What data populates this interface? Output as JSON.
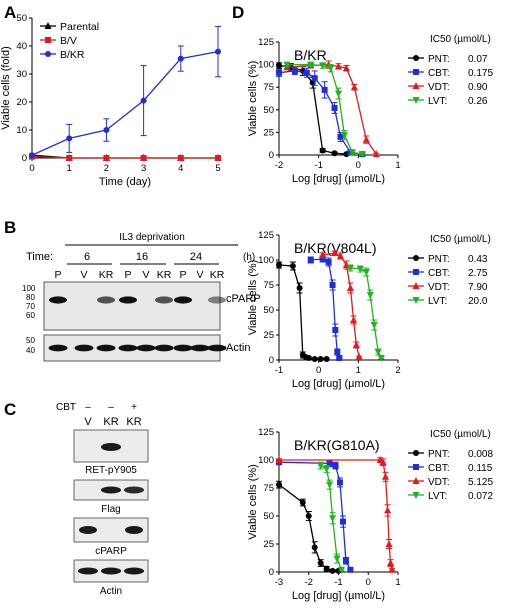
{
  "panels": {
    "A": {
      "letter": "A"
    },
    "B": {
      "letter": "B",
      "header": "IL3 deprivation",
      "time_label": "Time:",
      "times": [
        "6",
        "16",
        "24"
      ],
      "unit": "(h)",
      "lanes": [
        "P",
        "V",
        "KR",
        "P",
        "V",
        "KR",
        "P",
        "V",
        "KR"
      ],
      "mw_cparp": [
        "100",
        "80",
        "70",
        "60"
      ],
      "mw_actin": [
        "50",
        "40"
      ],
      "blot_labels": [
        "cPARP",
        "Actin"
      ]
    },
    "C": {
      "letter": "C",
      "cbt_label": "CBT",
      "cbt_marks": [
        "–",
        "–",
        "+"
      ],
      "lanes": [
        "V",
        "KR",
        "KR"
      ],
      "blot_labels": [
        "RET-pY905",
        "Flag",
        "cPARP",
        "Actin"
      ]
    },
    "D": {
      "letter": "D"
    }
  },
  "chart_data": [
    {
      "id": "A",
      "type": "line",
      "title": "",
      "xlabel": "Time (day)",
      "ylabel": "Viable cells (fold)",
      "xlim": [
        0,
        5
      ],
      "ylim": [
        0,
        50
      ],
      "xticks": [
        0,
        1,
        2,
        3,
        4,
        5
      ],
      "yticks": [
        0,
        10,
        20,
        30,
        40,
        50
      ],
      "legend_position": "top-left",
      "x": [
        0,
        1,
        2,
        3,
        4,
        5
      ],
      "series": [
        {
          "name": "Parental",
          "color": "#000000",
          "marker": "triangle",
          "values": [
            1,
            0,
            0,
            0,
            0,
            0
          ],
          "err": [
            0,
            0,
            0,
            0,
            0,
            0
          ]
        },
        {
          "name": "B/V",
          "color": "#e41a1c",
          "marker": "square",
          "values": [
            0.5,
            0,
            0,
            0,
            0,
            0
          ],
          "err": [
            0,
            0,
            0,
            0,
            0,
            0
          ]
        },
        {
          "name": "B/KR",
          "color": "#1f2fd6",
          "marker": "circle",
          "values": [
            1,
            7,
            10,
            20.5,
            35.5,
            38
          ],
          "err": [
            0,
            5,
            4,
            12.5,
            4.5,
            9
          ]
        }
      ]
    },
    {
      "id": "D1",
      "type": "line",
      "title": "B/KR",
      "xlabel": "Log [drug] (µmol/L)",
      "ylabel": "Viable cells (%)",
      "xlim": [
        -2,
        1
      ],
      "ylim": [
        0,
        125
      ],
      "xticks": [
        -2,
        -1,
        0,
        1
      ],
      "yticks": [
        0,
        25,
        50,
        75,
        100,
        125
      ],
      "legend_title": "IC50 (µmol/L)",
      "series": [
        {
          "name": "PNT:",
          "ic50": "0.07",
          "color": "#000000",
          "marker": "circle",
          "x": [
            -2,
            -1.7,
            -1.4,
            -1.15,
            -0.9,
            -0.6,
            -0.3
          ],
          "values": [
            99,
            97,
            93,
            80,
            5,
            2,
            1
          ],
          "err": [
            3,
            4,
            5,
            6,
            2,
            1,
            1
          ]
        },
        {
          "name": "CBT:",
          "ic50": "0.175",
          "color": "#1f2fd6",
          "marker": "square",
          "x": [
            -2,
            -1.6,
            -1.3,
            -1.1,
            -0.85,
            -0.6,
            -0.45,
            -0.2,
            0.1
          ],
          "values": [
            91,
            93,
            91,
            85,
            72,
            52,
            20,
            3,
            1
          ],
          "err": [
            4,
            4,
            5,
            8,
            9,
            6,
            5,
            2,
            1
          ]
        },
        {
          "name": "VDT:",
          "ic50": "0.90",
          "color": "#e41a1c",
          "marker": "triangle",
          "x": [
            -1.8,
            -1.2,
            -0.75,
            -0.5,
            -0.3,
            -0.1,
            0.2,
            0.45
          ],
          "values": [
            97,
            99,
            100,
            98,
            96,
            75,
            17,
            1
          ],
          "err": [
            2,
            2,
            4,
            3,
            3,
            3,
            4,
            1
          ]
        },
        {
          "name": "LVT:",
          "ic50": "0.26",
          "color": "#22b322",
          "marker": "tridown",
          "x": [
            -1.8,
            -1.2,
            -0.9,
            -0.7,
            -0.5,
            -0.35,
            -0.15,
            0.1
          ],
          "values": [
            100,
            100,
            99,
            96,
            68,
            22,
            3,
            1
          ],
          "err": [
            2,
            2,
            3,
            4,
            6,
            5,
            2,
            1
          ]
        }
      ]
    },
    {
      "id": "D2",
      "type": "line",
      "title": "B/KR(V804L)",
      "xlabel": "Log [drug] (µmol/L)",
      "ylabel": "Viable cells (%)",
      "xlim": [
        -1,
        2
      ],
      "ylim": [
        0,
        125
      ],
      "xticks": [
        -1,
        0,
        1,
        2
      ],
      "yticks": [
        0,
        25,
        50,
        75,
        100,
        125
      ],
      "legend_title": "IC50 (µmol/L)",
      "series": [
        {
          "name": "PNT:",
          "ic50": "0.43",
          "color": "#000000",
          "marker": "circle",
          "x": [
            -1,
            -0.65,
            -0.48,
            -0.4,
            -0.33,
            -0.25,
            -0.1,
            0.05,
            0.2
          ],
          "values": [
            95,
            94,
            72,
            5,
            3,
            2,
            1,
            1,
            1
          ],
          "err": [
            3,
            4,
            5,
            3,
            1,
            1,
            1,
            1,
            1
          ]
        },
        {
          "name": "CBT:",
          "ic50": "2.75",
          "color": "#1f2fd6",
          "marker": "square",
          "x": [
            -0.2,
            0.1,
            0.25,
            0.35,
            0.42,
            0.47,
            0.52
          ],
          "values": [
            100,
            101,
            98,
            75,
            30,
            8,
            2
          ],
          "err": [
            3,
            3,
            4,
            5,
            6,
            3,
            1
          ]
        },
        {
          "name": "VDT:",
          "ic50": "7.90",
          "color": "#e41a1c",
          "marker": "triangle",
          "x": [
            0.1,
            0.4,
            0.55,
            0.7,
            0.8,
            0.88,
            0.95,
            1.02
          ],
          "values": [
            105,
            107,
            104,
            95,
            72,
            40,
            15,
            3
          ],
          "err": [
            2,
            2,
            3,
            4,
            5,
            4,
            3,
            1
          ]
        },
        {
          "name": "LVT:",
          "ic50": "20.0",
          "color": "#22b322",
          "marker": "tridown",
          "x": [
            0.8,
            1.05,
            1.2,
            1.3,
            1.4,
            1.5,
            1.58
          ],
          "values": [
            92,
            91,
            88,
            65,
            35,
            8,
            2
          ],
          "err": [
            3,
            3,
            4,
            5,
            5,
            3,
            1
          ]
        }
      ]
    },
    {
      "id": "D3",
      "type": "line",
      "title": "B/KR(G810A)",
      "xlabel": "Log [drug] (µmol/L)",
      "ylabel": "Viable cells (%)",
      "xlim": [
        -3,
        1
      ],
      "ylim": [
        0,
        125
      ],
      "xticks": [
        -3,
        -2,
        -1,
        0,
        1
      ],
      "yticks": [
        0,
        25,
        50,
        75,
        100,
        125
      ],
      "legend_title": "IC50 (µmol/L)",
      "series": [
        {
          "name": "PNT:",
          "ic50": "0.008",
          "color": "#000000",
          "marker": "circle",
          "x": [
            -3,
            -2.2,
            -2,
            -1.8,
            -1.6,
            -1.4,
            -1.2,
            -1.0
          ],
          "values": [
            78,
            62,
            50,
            22,
            8,
            3,
            1,
            1
          ],
          "err": [
            3,
            3,
            4,
            5,
            3,
            2,
            1,
            1
          ]
        },
        {
          "name": "CBT:",
          "ic50": "0.115",
          "color": "#1f2fd6",
          "marker": "square",
          "x": [
            -3,
            -1.3,
            -1.1,
            -0.95,
            -0.85,
            -0.75,
            -0.6
          ],
          "values": [
            98,
            97,
            95,
            80,
            45,
            10,
            2
          ],
          "err": [
            2,
            3,
            3,
            4,
            5,
            3,
            1
          ]
        },
        {
          "name": "VDT:",
          "ic50": "5.125",
          "color": "#e41a1c",
          "marker": "triangle",
          "x": [
            -3,
            0.4,
            0.5,
            0.58,
            0.65,
            0.7,
            0.75,
            0.8
          ],
          "values": [
            100,
            100,
            98,
            85,
            55,
            25,
            8,
            2
          ],
          "err": [
            1,
            2,
            3,
            4,
            5,
            4,
            3,
            1
          ]
        },
        {
          "name": "LVT:",
          "ic50": "0.072",
          "color": "#22b322",
          "marker": "tridown",
          "x": [
            -1.6,
            -1.4,
            -1.3,
            -1.2,
            -1.05,
            -0.9
          ],
          "values": [
            95,
            92,
            78,
            48,
            12,
            2
          ],
          "err": [
            3,
            3,
            4,
            5,
            4,
            1
          ]
        }
      ]
    }
  ]
}
